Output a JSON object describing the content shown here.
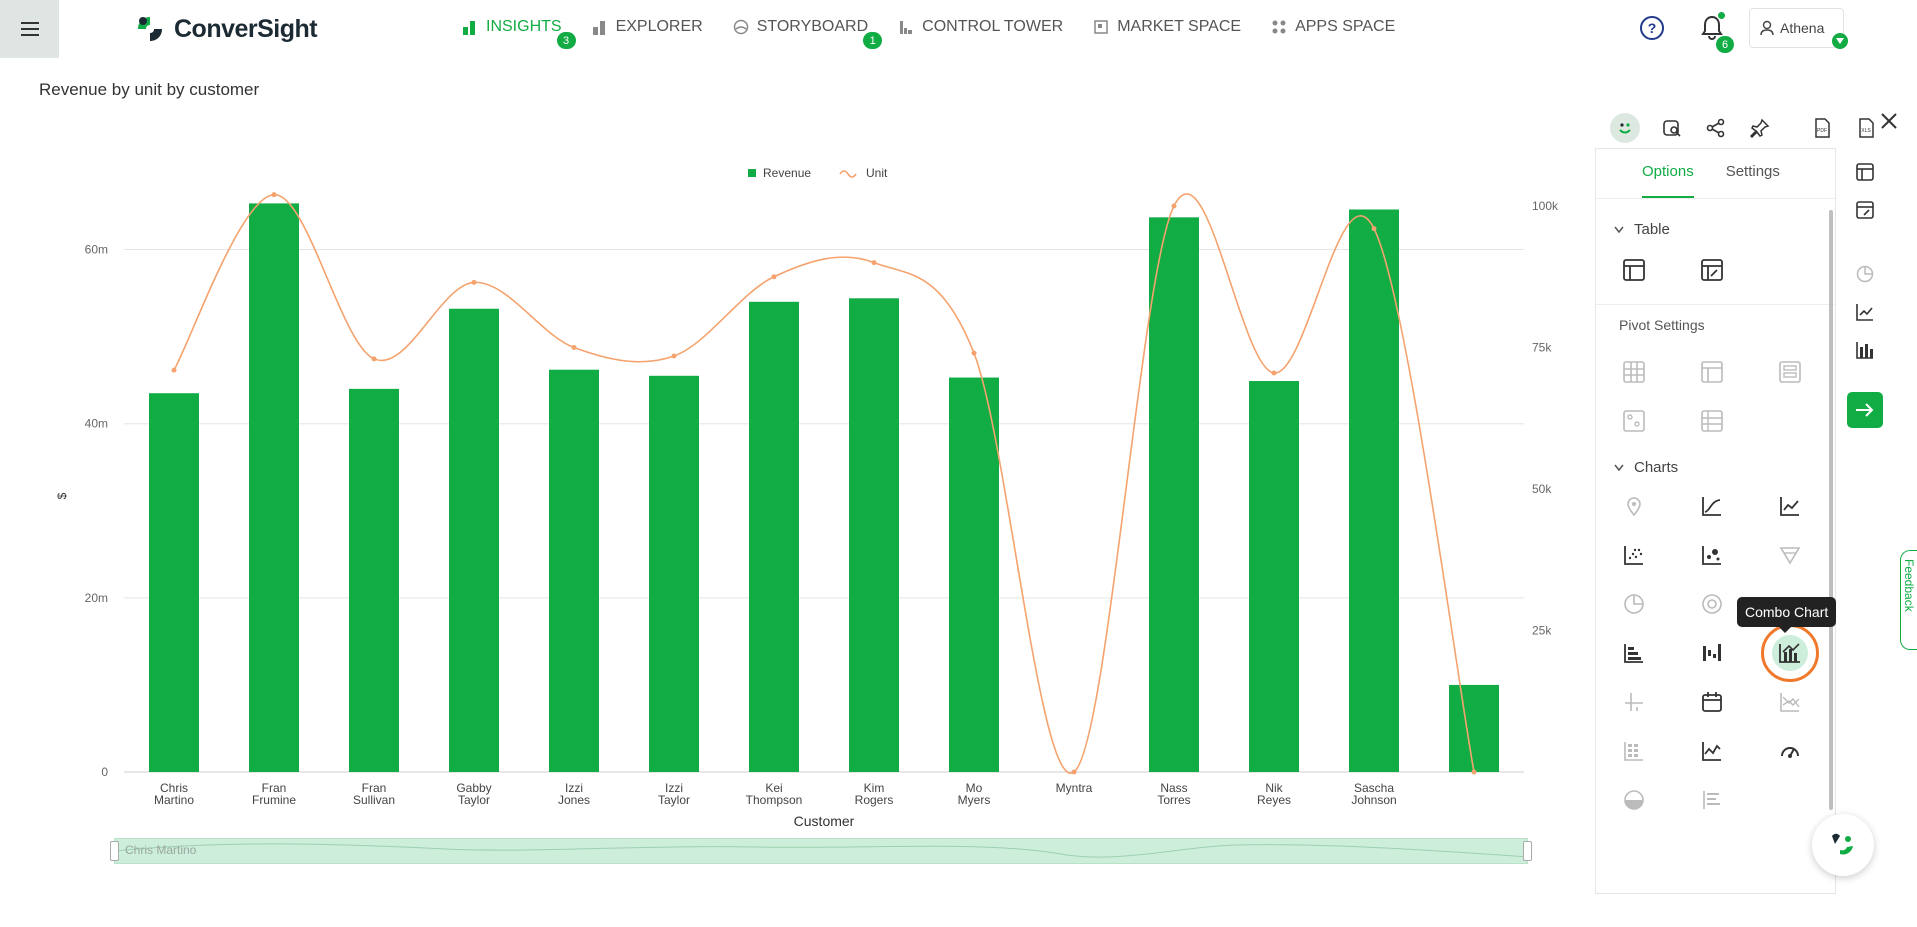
{
  "app": {
    "logo_text": "ConverSight"
  },
  "nav": [
    {
      "label": "INSIGHTS",
      "badge": "3",
      "active": true,
      "icon": "bar-chart-icon"
    },
    {
      "label": "EXPLORER",
      "badge": null,
      "icon": "explorer-bars-icon"
    },
    {
      "label": "STORYBOARD",
      "badge": "1",
      "icon": "storyboard-icon"
    },
    {
      "label": "CONTROL TOWER",
      "badge": null,
      "icon": "control-tower-icon"
    },
    {
      "label": "MARKET SPACE",
      "badge": null,
      "icon": "market-space-icon"
    },
    {
      "label": "APPS SPACE",
      "badge": null,
      "icon": "apps-grid-icon"
    }
  ],
  "header": {
    "notifications_count": "6",
    "user_name": "Athena"
  },
  "report": {
    "title": "Revenue by unit by customer"
  },
  "zoom_slider": {
    "start_label": "Chris Martino"
  },
  "panel": {
    "tabs": [
      "Options",
      "Settings"
    ],
    "table_section": "Table",
    "pivot_section": "Pivot Settings",
    "charts_section": "Charts",
    "tooltip": "Combo Chart"
  },
  "feedback_label": "Feedback",
  "colors": {
    "accent": "#12ac45",
    "line": "#f5a36e",
    "highlight": "#f0782b"
  },
  "chart_data": {
    "type": "bar+line",
    "title": "",
    "xlabel": "Customer",
    "ylabel": "$",
    "categories": [
      [
        "Chris",
        "Martino"
      ],
      [
        "Fran",
        "Frumine"
      ],
      [
        "Fran",
        "Sullivan"
      ],
      [
        "Gabby",
        "Taylor"
      ],
      [
        "Izzi",
        "Jones"
      ],
      [
        "Izzi",
        "Taylor"
      ],
      [
        "Kei",
        "Thompson"
      ],
      [
        "Kim",
        "Rogers"
      ],
      [
        "Mo",
        "Myers"
      ],
      [
        "Myntra"
      ],
      [
        "Nass",
        "Torres"
      ],
      [
        "Nik",
        "Reyes"
      ],
      [
        "Sascha",
        "Johnson"
      ],
      [
        ""
      ]
    ],
    "series": [
      {
        "name": "Revenue",
        "type": "bar",
        "axis": "left",
        "values": [
          43.5,
          65.3,
          44.0,
          53.2,
          46.2,
          45.5,
          54.0,
          54.4,
          45.3,
          0,
          63.7,
          44.9,
          64.6,
          10.0
        ]
      },
      {
        "name": "Unit",
        "type": "line",
        "axis": "right",
        "values": [
          71000,
          102000,
          73000,
          86500,
          75000,
          73500,
          87500,
          90000,
          74000,
          0,
          100000,
          70500,
          96000,
          0
        ]
      }
    ],
    "y_left": {
      "ylim": [
        0,
        65
      ],
      "ticks": [
        0,
        20,
        40,
        60
      ],
      "tick_labels": [
        "0",
        "20m",
        "40m",
        "60m"
      ]
    },
    "y_right": {
      "ylim": [
        0,
        100000
      ],
      "ticks": [
        25000,
        50000,
        75000,
        100000
      ],
      "tick_labels": [
        "25k",
        "50k",
        "75k",
        "100k"
      ]
    },
    "legend": "top-center",
    "grid": true
  }
}
